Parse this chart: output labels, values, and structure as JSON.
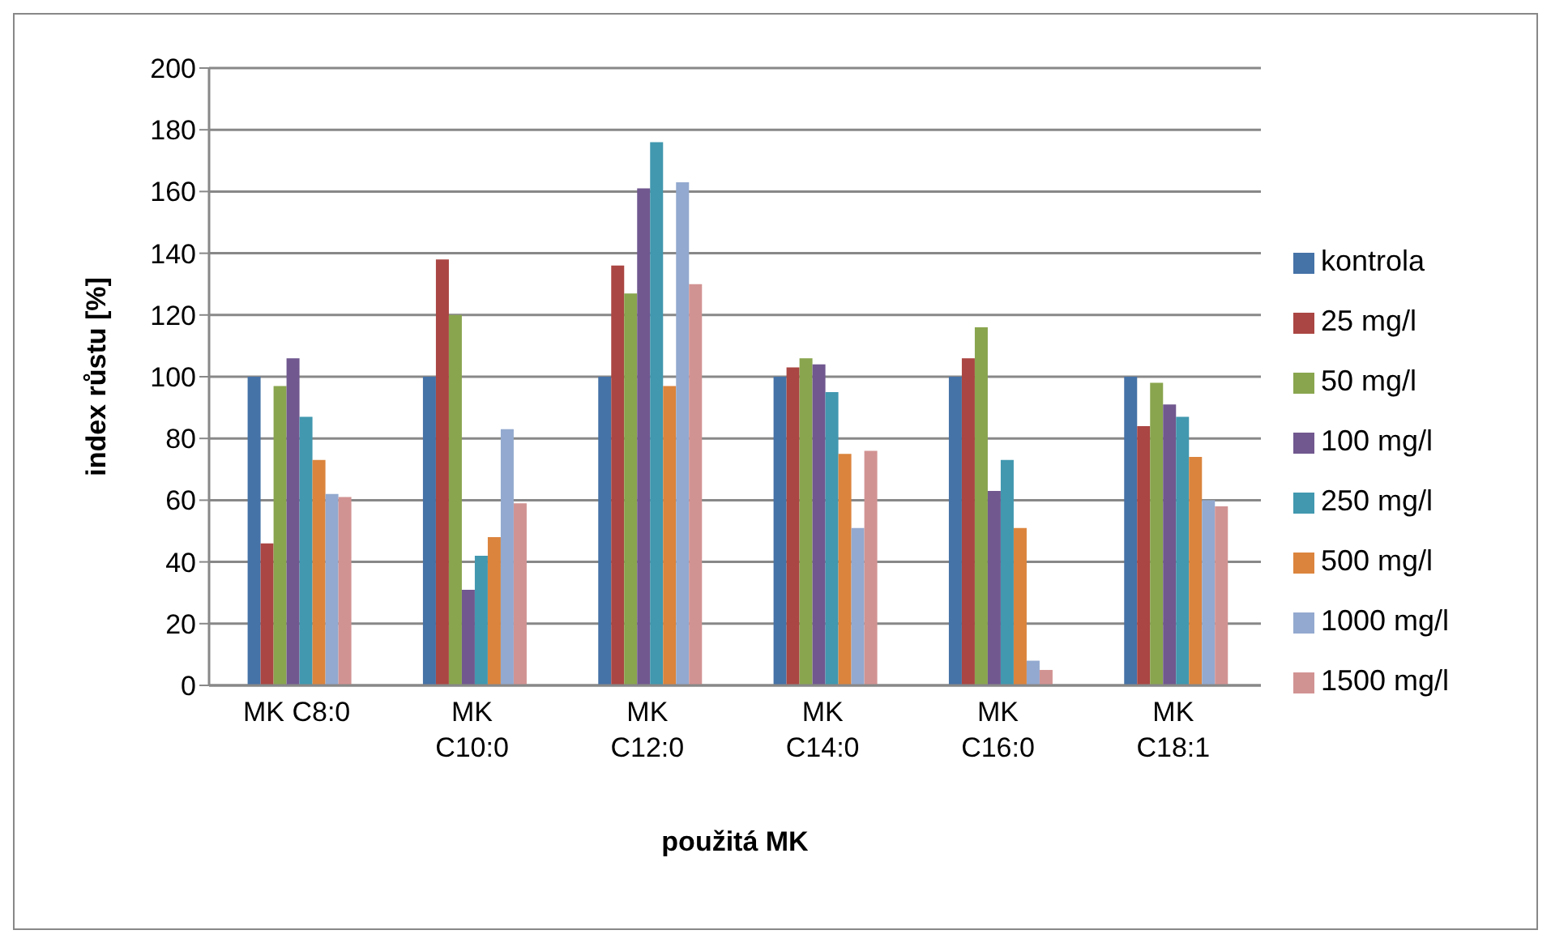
{
  "chart_data": {
    "type": "bar",
    "xlabel": "použitá MK",
    "ylabel": "index růstu [%]",
    "categories": [
      "MK C8:0",
      "MK C10:0",
      "MK C12:0",
      "MK C14:0",
      "MK C16:0",
      "MK C18:1"
    ],
    "series": [
      {
        "name": "kontrola",
        "color": "#4572a7",
        "values": [
          100,
          100,
          100,
          100,
          100,
          100
        ]
      },
      {
        "name": "25 mg/l",
        "color": "#aa4643",
        "values": [
          46,
          138,
          136,
          103,
          106,
          84
        ]
      },
      {
        "name": "50 mg/l",
        "color": "#89a54e",
        "values": [
          97,
          120,
          127,
          106,
          116,
          98
        ]
      },
      {
        "name": "100 mg/l",
        "color": "#71588f",
        "values": [
          106,
          31,
          161,
          104,
          63,
          91
        ]
      },
      {
        "name": "250 mg/l",
        "color": "#4198af",
        "values": [
          87,
          42,
          176,
          95,
          73,
          87
        ]
      },
      {
        "name": "500 mg/l",
        "color": "#db843d",
        "values": [
          73,
          48,
          97,
          75,
          51,
          74
        ]
      },
      {
        "name": "1000 mg/l",
        "color": "#93a9cf",
        "values": [
          62,
          83,
          163,
          51,
          8,
          60
        ]
      },
      {
        "name": "1500 mg/l",
        "color": "#d19392",
        "values": [
          61,
          59,
          130,
          76,
          5,
          58
        ]
      }
    ],
    "ylim": [
      0,
      200
    ],
    "yticks": [
      0,
      20,
      40,
      60,
      80,
      100,
      120,
      140,
      160,
      180,
      200
    ],
    "grid": "y",
    "legend": "right"
  }
}
